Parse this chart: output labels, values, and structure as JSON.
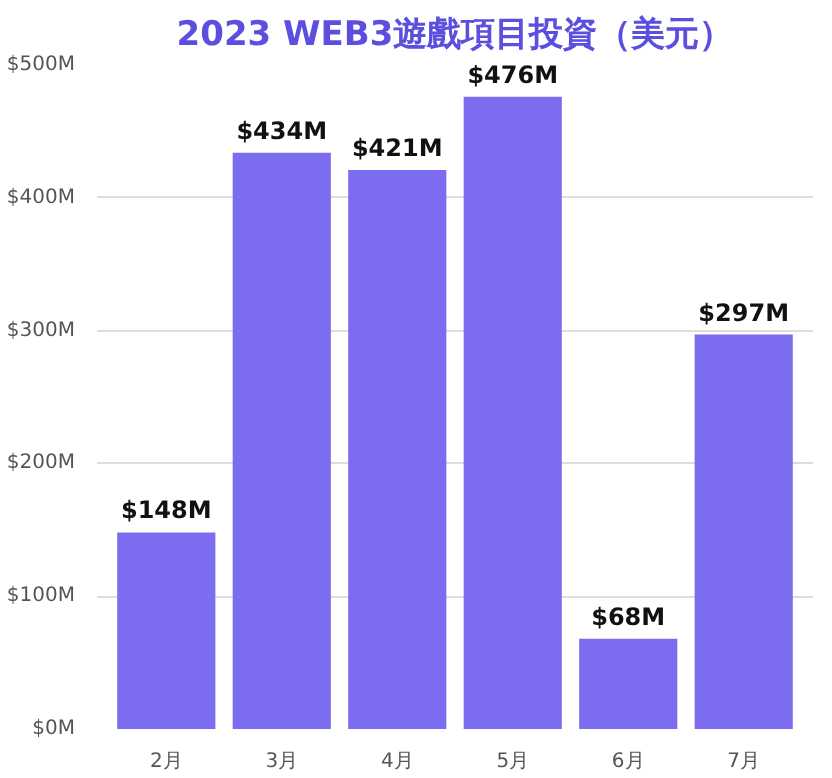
{
  "chart_data": {
    "type": "bar",
    "title": "2023 WEB3遊戲項目投資（美元）",
    "categories": [
      "2月",
      "3月",
      "4月",
      "5月",
      "6月",
      "7月"
    ],
    "values": [
      148,
      434,
      421,
      476,
      68,
      297
    ],
    "value_labels": [
      "$148M",
      "$434M",
      "$421M",
      "$476M",
      "$68M",
      "$297M"
    ],
    "color": "#7b6cf0",
    "ylim": [
      0,
      500
    ],
    "yticks": [
      {
        "value": 0,
        "label": "$0M"
      },
      {
        "value": 100,
        "label": "$100M"
      },
      {
        "value": 200,
        "label": "$200M"
      },
      {
        "value": 300,
        "label": "$300M"
      },
      {
        "value": 400,
        "label": "$400M"
      },
      {
        "value": 500,
        "label": "$500M"
      }
    ],
    "grid": "y",
    "legend": false
  }
}
